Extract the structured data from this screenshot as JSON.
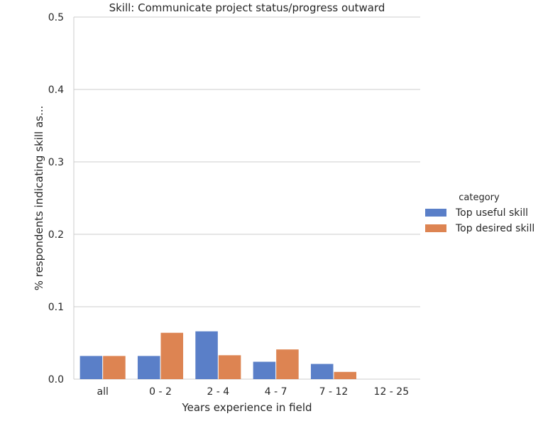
{
  "chart_data": {
    "type": "bar",
    "title": "Skill: Communicate project status/progress outward",
    "xlabel": "Years experience in field",
    "ylabel": "% respondents indicating skill as...",
    "categories": [
      "all",
      "0 - 2",
      "2 - 4",
      "4 - 7",
      "7 - 12",
      "12 - 25"
    ],
    "ylim": [
      0,
      0.5
    ],
    "yticks": [
      "0.0",
      "0.1",
      "0.2",
      "0.3",
      "0.4",
      "0.5"
    ],
    "grid": true,
    "legend": {
      "title": "category",
      "placement": "right"
    },
    "series": [
      {
        "name": "Top useful skill",
        "color": "#5a7fc8",
        "values": [
          0.032,
          0.032,
          0.066,
          0.024,
          0.021,
          0.0
        ]
      },
      {
        "name": "Top desired skill",
        "color": "#dd8452",
        "values": [
          0.032,
          0.064,
          0.033,
          0.041,
          0.01,
          0.0
        ]
      }
    ]
  }
}
